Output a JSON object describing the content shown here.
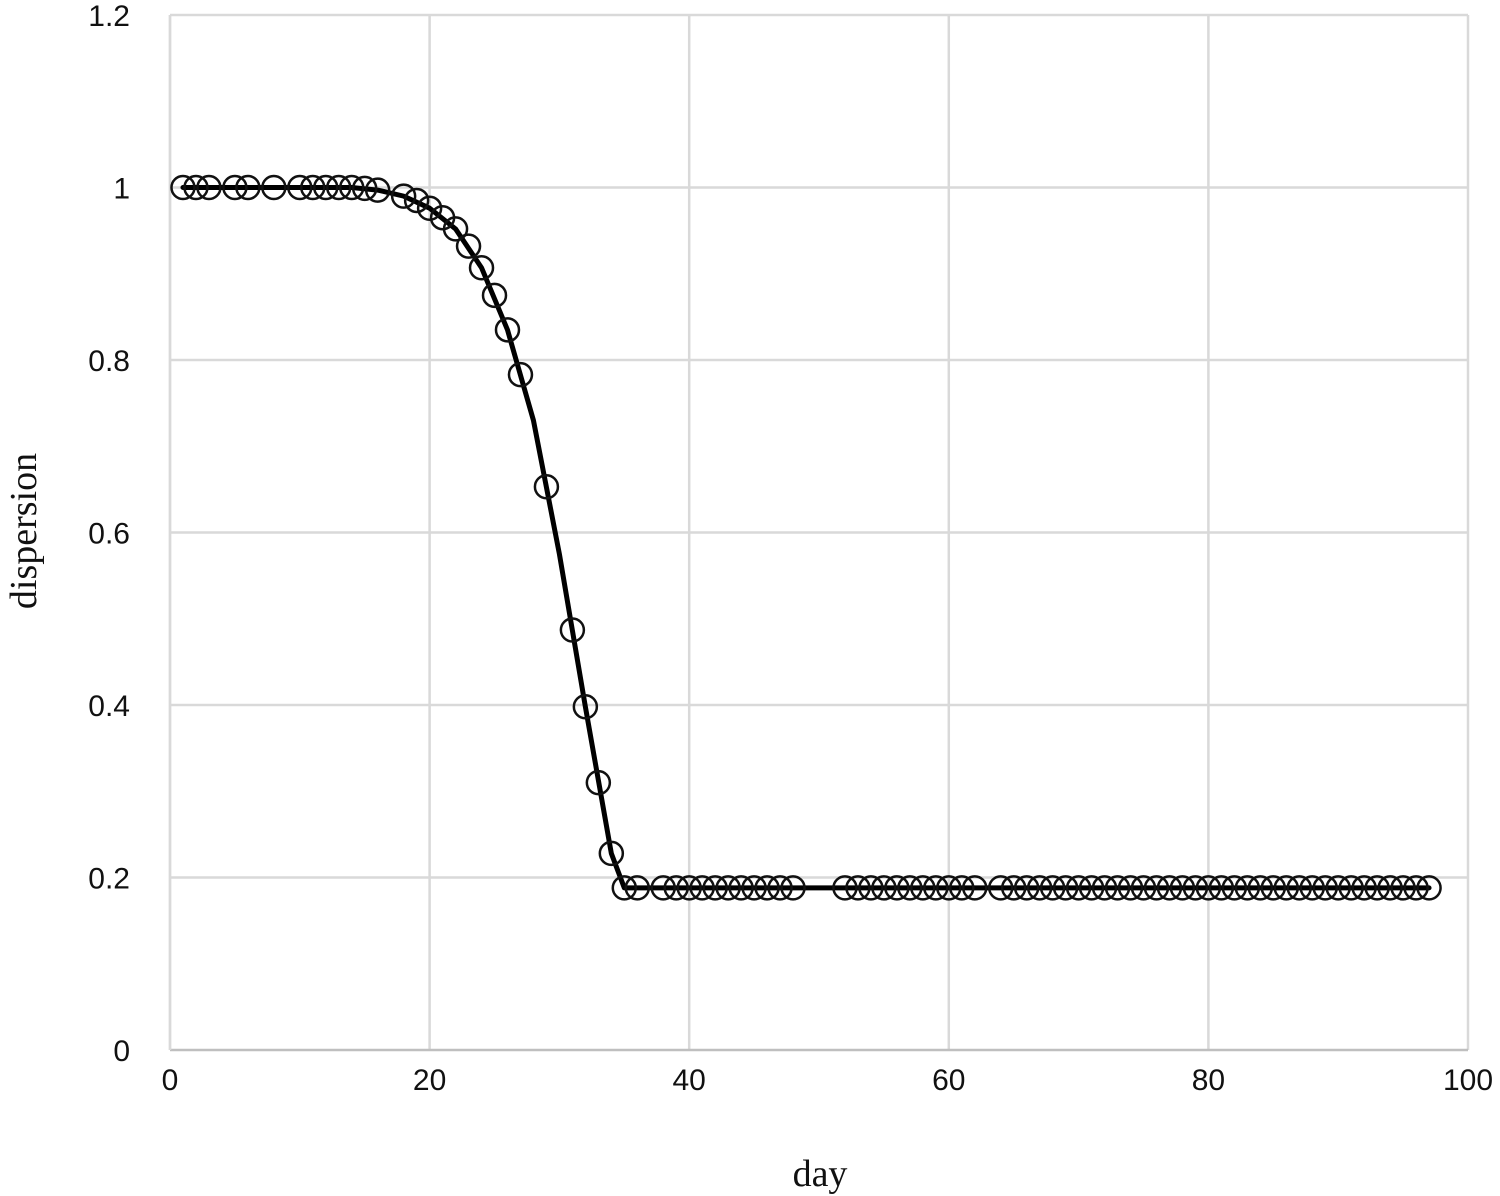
{
  "chart_data": {
    "type": "scatter",
    "xlabel": "day",
    "ylabel": "dispersion",
    "xlim": [
      0,
      100
    ],
    "ylim": [
      0,
      1.2
    ],
    "x_ticks": [
      "0",
      "20",
      "40",
      "60",
      "80",
      "100"
    ],
    "y_ticks": [
      "0",
      "0.2",
      "0.4",
      "0.6",
      "0.8",
      "1",
      "1.2"
    ],
    "grid": true,
    "legend": "none",
    "series": [
      {
        "marker": "open-circle",
        "color": "#111111",
        "x": [
          1,
          2,
          3,
          5,
          6,
          8,
          10,
          11,
          12,
          13,
          14,
          15,
          16,
          18,
          19,
          20,
          21,
          22,
          23,
          24,
          25,
          26,
          27,
          29,
          31,
          32,
          33,
          34,
          35,
          36,
          38,
          39,
          40,
          41,
          42,
          43,
          44,
          45,
          46,
          47,
          48,
          52,
          53,
          54,
          55,
          56,
          57,
          58,
          59,
          60,
          61,
          62,
          64,
          65,
          66,
          67,
          68,
          69,
          70,
          71,
          72,
          73,
          74,
          75,
          76,
          77,
          78,
          79,
          80,
          81,
          82,
          83,
          84,
          85,
          86,
          87,
          88,
          89,
          90,
          91,
          92,
          93,
          94,
          95,
          96,
          97
        ],
        "y": [
          1.0,
          1.0,
          1.0,
          1.0,
          1.0,
          1.0,
          1.0,
          1.0,
          1.0,
          1.0,
          1.0,
          0.999,
          0.997,
          0.99,
          0.985,
          0.976,
          0.965,
          0.952,
          0.932,
          0.907,
          0.875,
          0.835,
          0.783,
          0.653,
          0.487,
          0.398,
          0.31,
          0.228,
          0.188,
          0.188,
          0.188,
          0.188,
          0.188,
          0.188,
          0.188,
          0.188,
          0.188,
          0.188,
          0.188,
          0.188,
          0.188,
          0.188,
          0.188,
          0.188,
          0.188,
          0.188,
          0.188,
          0.188,
          0.188,
          0.188,
          0.188,
          0.188,
          0.188,
          0.188,
          0.188,
          0.188,
          0.188,
          0.188,
          0.188,
          0.188,
          0.188,
          0.188,
          0.188,
          0.188,
          0.188,
          0.188,
          0.188,
          0.188,
          0.188,
          0.188,
          0.188,
          0.188,
          0.188,
          0.188,
          0.188,
          0.188,
          0.188,
          0.188,
          0.188,
          0.188,
          0.188,
          0.188,
          0.188,
          0.188,
          0.188,
          0.188
        ]
      },
      {
        "marker": "line",
        "color": "#000000",
        "x": [
          1,
          5,
          10,
          14,
          16,
          18,
          20,
          22,
          24,
          26,
          28,
          30,
          32,
          34,
          35,
          40,
          50,
          60,
          70,
          80,
          90,
          97
        ],
        "y": [
          1.0,
          1.0,
          1.0,
          1.0,
          0.997,
          0.99,
          0.976,
          0.952,
          0.907,
          0.835,
          0.73,
          0.575,
          0.398,
          0.228,
          0.188,
          0.188,
          0.188,
          0.188,
          0.188,
          0.188,
          0.188,
          0.188
        ]
      }
    ]
  }
}
